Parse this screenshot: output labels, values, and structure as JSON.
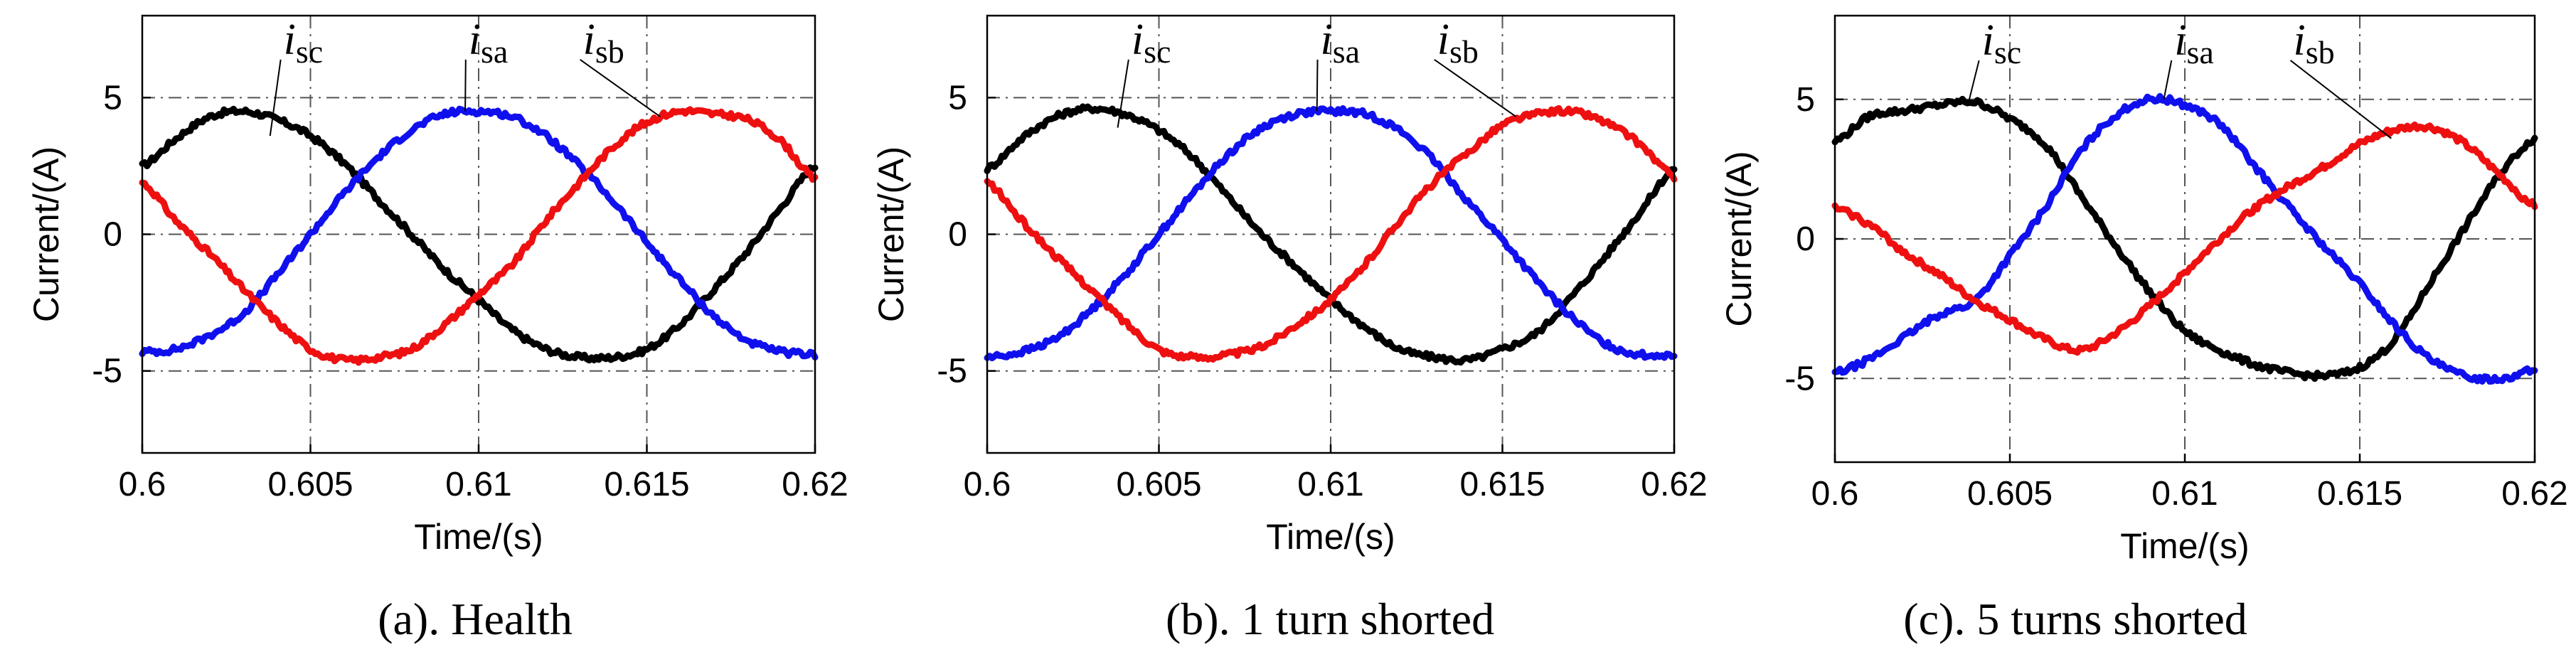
{
  "chart_data": [
    {
      "type": "line",
      "caption": "(a). Health",
      "xlabel": "Time/(s)",
      "ylabel": "Current/(A)",
      "xlim": [
        0.6,
        0.62
      ],
      "ylim": [
        -8,
        8
      ],
      "xticks": [
        0.6,
        0.605,
        0.61,
        0.615,
        0.62
      ],
      "xtick_labels": [
        "0.6",
        "0.605",
        "0.61",
        "0.615",
        "0.62"
      ],
      "yticks": [
        -5,
        0,
        5
      ],
      "ytick_labels": [
        "-5",
        "0",
        "5"
      ],
      "grid": true,
      "series": [
        {
          "name": "isc",
          "label_main": "i",
          "label_sub": "sc",
          "color": "#000000",
          "x": [
            0.6,
            0.601,
            0.602,
            0.603,
            0.604,
            0.605,
            0.606,
            0.607,
            0.608,
            0.609,
            0.61,
            0.611,
            0.612,
            0.613,
            0.614,
            0.615,
            0.616,
            0.617,
            0.618,
            0.619,
            0.62
          ],
          "y": [
            2.5,
            3.5,
            4.3,
            4.5,
            4.2,
            3.6,
            2.6,
            1.3,
            0.0,
            -1.3,
            -2.4,
            -3.5,
            -4.2,
            -4.5,
            -4.5,
            -4.2,
            -3.3,
            -2.0,
            -0.6,
            1.0,
            2.5
          ]
        },
        {
          "name": "isa",
          "label_main": "i",
          "label_sub": "sa",
          "color": "#1010ee",
          "x": [
            0.6,
            0.601,
            0.602,
            0.603,
            0.604,
            0.605,
            0.606,
            0.607,
            0.608,
            0.609,
            0.61,
            0.611,
            0.612,
            0.613,
            0.614,
            0.615,
            0.616,
            0.617,
            0.618,
            0.619,
            0.62
          ],
          "y": [
            -4.3,
            -4.2,
            -3.7,
            -2.9,
            -1.5,
            0.0,
            1.5,
            2.8,
            3.8,
            4.4,
            4.5,
            4.3,
            3.6,
            2.5,
            1.2,
            -0.3,
            -1.7,
            -3.0,
            -3.9,
            -4.3,
            -4.4
          ]
        },
        {
          "name": "isb",
          "label_main": "i",
          "label_sub": "sb",
          "color": "#ee1010",
          "x": [
            0.6,
            0.601,
            0.602,
            0.603,
            0.604,
            0.605,
            0.606,
            0.607,
            0.608,
            0.609,
            0.61,
            0.611,
            0.612,
            0.613,
            0.614,
            0.615,
            0.616,
            0.617,
            0.618,
            0.619,
            0.62
          ],
          "y": [
            1.9,
            0.5,
            -0.7,
            -2.0,
            -3.2,
            -4.2,
            -4.6,
            -4.5,
            -4.2,
            -3.3,
            -2.2,
            -1.1,
            0.5,
            1.9,
            3.2,
            4.1,
            4.5,
            4.4,
            4.2,
            3.4,
            2.0
          ]
        }
      ],
      "annotations": [
        {
          "series": "isc",
          "at": [
            0.6038,
            3.6
          ],
          "label_at": [
            0.6042,
            6.6
          ]
        },
        {
          "series": "isa",
          "at": [
            0.6096,
            4.5
          ],
          "label_at": [
            0.6097,
            6.6
          ]
        },
        {
          "series": "isb",
          "at": [
            0.6154,
            4.3
          ],
          "label_at": [
            0.6131,
            6.6
          ]
        }
      ]
    },
    {
      "type": "line",
      "caption": "(b). 1 turn shorted",
      "xlabel": "Time/(s)",
      "ylabel": "Current/(A)",
      "xlim": [
        0.6,
        0.62
      ],
      "ylim": [
        -8,
        8
      ],
      "xticks": [
        0.6,
        0.605,
        0.61,
        0.615,
        0.62
      ],
      "xtick_labels": [
        "0.6",
        "0.605",
        "0.61",
        "0.615",
        "0.62"
      ],
      "yticks": [
        -5,
        0,
        5
      ],
      "ytick_labels": [
        "-5",
        "0",
        "5"
      ],
      "grid": true,
      "series": [
        {
          "name": "isc",
          "label_main": "i",
          "label_sub": "sc",
          "color": "#000000",
          "x": [
            0.6,
            0.601,
            0.602,
            0.603,
            0.604,
            0.605,
            0.606,
            0.607,
            0.608,
            0.609,
            0.61,
            0.611,
            0.612,
            0.613,
            0.614,
            0.615,
            0.616,
            0.617,
            0.618,
            0.619,
            0.62
          ],
          "y": [
            2.4,
            3.5,
            4.3,
            4.6,
            4.4,
            3.8,
            2.8,
            1.4,
            0.0,
            -1.2,
            -2.4,
            -3.4,
            -4.2,
            -4.5,
            -4.6,
            -4.2,
            -3.6,
            -2.3,
            -0.8,
            0.8,
            2.4
          ]
        },
        {
          "name": "isa",
          "label_main": "i",
          "label_sub": "sa",
          "color": "#1010ee",
          "x": [
            0.6,
            0.601,
            0.602,
            0.603,
            0.604,
            0.605,
            0.606,
            0.607,
            0.608,
            0.609,
            0.61,
            0.611,
            0.612,
            0.613,
            0.614,
            0.615,
            0.616,
            0.617,
            0.618,
            0.619,
            0.62
          ],
          "y": [
            -4.5,
            -4.3,
            -3.8,
            -2.8,
            -1.5,
            0.0,
            1.5,
            2.9,
            3.9,
            4.4,
            4.5,
            4.4,
            3.8,
            2.7,
            1.2,
            -0.2,
            -1.7,
            -3.0,
            -4.0,
            -4.4,
            -4.4
          ]
        },
        {
          "name": "isb",
          "label_main": "i",
          "label_sub": "sb",
          "color": "#ee1010",
          "x": [
            0.6,
            0.601,
            0.602,
            0.603,
            0.604,
            0.605,
            0.606,
            0.607,
            0.608,
            0.609,
            0.61,
            0.611,
            0.612,
            0.613,
            0.614,
            0.615,
            0.616,
            0.617,
            0.618,
            0.619,
            0.62
          ],
          "y": [
            1.9,
            0.5,
            -0.8,
            -2.0,
            -3.2,
            -4.2,
            -4.5,
            -4.4,
            -4.1,
            -3.3,
            -2.4,
            -1.1,
            0.5,
            1.9,
            3.0,
            4.0,
            4.4,
            4.5,
            4.1,
            3.3,
            2.1
          ]
        }
      ],
      "annotations": [
        {
          "series": "isc",
          "at": [
            0.6038,
            3.9
          ],
          "label_at": [
            0.6042,
            6.6
          ]
        },
        {
          "series": "isa",
          "at": [
            0.6096,
            4.5
          ],
          "label_at": [
            0.6097,
            6.6
          ]
        },
        {
          "series": "isb",
          "at": [
            0.6154,
            4.3
          ],
          "label_at": [
            0.6131,
            6.6
          ]
        }
      ]
    },
    {
      "type": "line",
      "caption": "(c). 5 turns shorted",
      "xlabel": "Time/(s)",
      "ylabel": "Current/(A)",
      "xlim": [
        0.6,
        0.62
      ],
      "ylim": [
        -8,
        8
      ],
      "xticks": [
        0.6,
        0.605,
        0.61,
        0.615,
        0.62
      ],
      "xtick_labels": [
        "0.6",
        "0.605",
        "0.61",
        "0.615",
        "0.62"
      ],
      "yticks": [
        -5,
        0,
        5
      ],
      "ytick_labels": [
        "-5",
        "0",
        "5"
      ],
      "grid": true,
      "series": [
        {
          "name": "isc",
          "label_main": "i",
          "label_sub": "sc",
          "color": "#000000",
          "x": [
            0.6,
            0.601,
            0.602,
            0.603,
            0.604,
            0.605,
            0.606,
            0.607,
            0.608,
            0.609,
            0.61,
            0.611,
            0.612,
            0.613,
            0.614,
            0.615,
            0.616,
            0.617,
            0.618,
            0.619,
            0.62
          ],
          "y": [
            3.5,
            4.4,
            4.6,
            4.8,
            4.9,
            4.3,
            3.4,
            1.6,
            -0.2,
            -1.9,
            -3.3,
            -4.0,
            -4.5,
            -4.8,
            -4.9,
            -4.6,
            -3.6,
            -1.6,
            0.4,
            2.3,
            3.6
          ]
        },
        {
          "name": "isa",
          "label_main": "i",
          "label_sub": "sa",
          "color": "#1010ee",
          "x": [
            0.6,
            0.601,
            0.602,
            0.603,
            0.604,
            0.605,
            0.606,
            0.607,
            0.608,
            0.609,
            0.61,
            0.611,
            0.612,
            0.613,
            0.614,
            0.615,
            0.616,
            0.617,
            0.618,
            0.619,
            0.62
          ],
          "y": [
            -4.8,
            -4.3,
            -3.5,
            -2.7,
            -2.2,
            -0.6,
            1.1,
            3.1,
            4.4,
            5.0,
            4.8,
            4.1,
            2.6,
            1.1,
            -0.3,
            -1.6,
            -3.1,
            -4.3,
            -4.9,
            -5.0,
            -4.7
          ]
        },
        {
          "name": "isb",
          "label_main": "i",
          "label_sub": "sb",
          "color": "#ee1010",
          "x": [
            0.6,
            0.601,
            0.602,
            0.603,
            0.604,
            0.605,
            0.606,
            0.607,
            0.608,
            0.609,
            0.61,
            0.611,
            0.612,
            0.613,
            0.614,
            0.615,
            0.616,
            0.617,
            0.618,
            0.619,
            0.62
          ],
          "y": [
            1.1,
            0.5,
            -0.5,
            -1.3,
            -2.2,
            -2.9,
            -3.6,
            -4.0,
            -3.4,
            -2.4,
            -1.2,
            0.0,
            1.1,
            1.9,
            2.6,
            3.4,
            3.9,
            4.0,
            3.4,
            2.3,
            1.2
          ]
        }
      ],
      "annotations": [
        {
          "series": "isc",
          "at": [
            0.6038,
            4.8
          ],
          "label_at": [
            0.6042,
            6.6
          ]
        },
        {
          "series": "isa",
          "at": [
            0.6094,
            5.0
          ],
          "label_at": [
            0.6097,
            6.6
          ]
        },
        {
          "series": "isb",
          "at": [
            0.6159,
            3.6
          ],
          "label_at": [
            0.6131,
            6.6
          ]
        }
      ]
    }
  ]
}
